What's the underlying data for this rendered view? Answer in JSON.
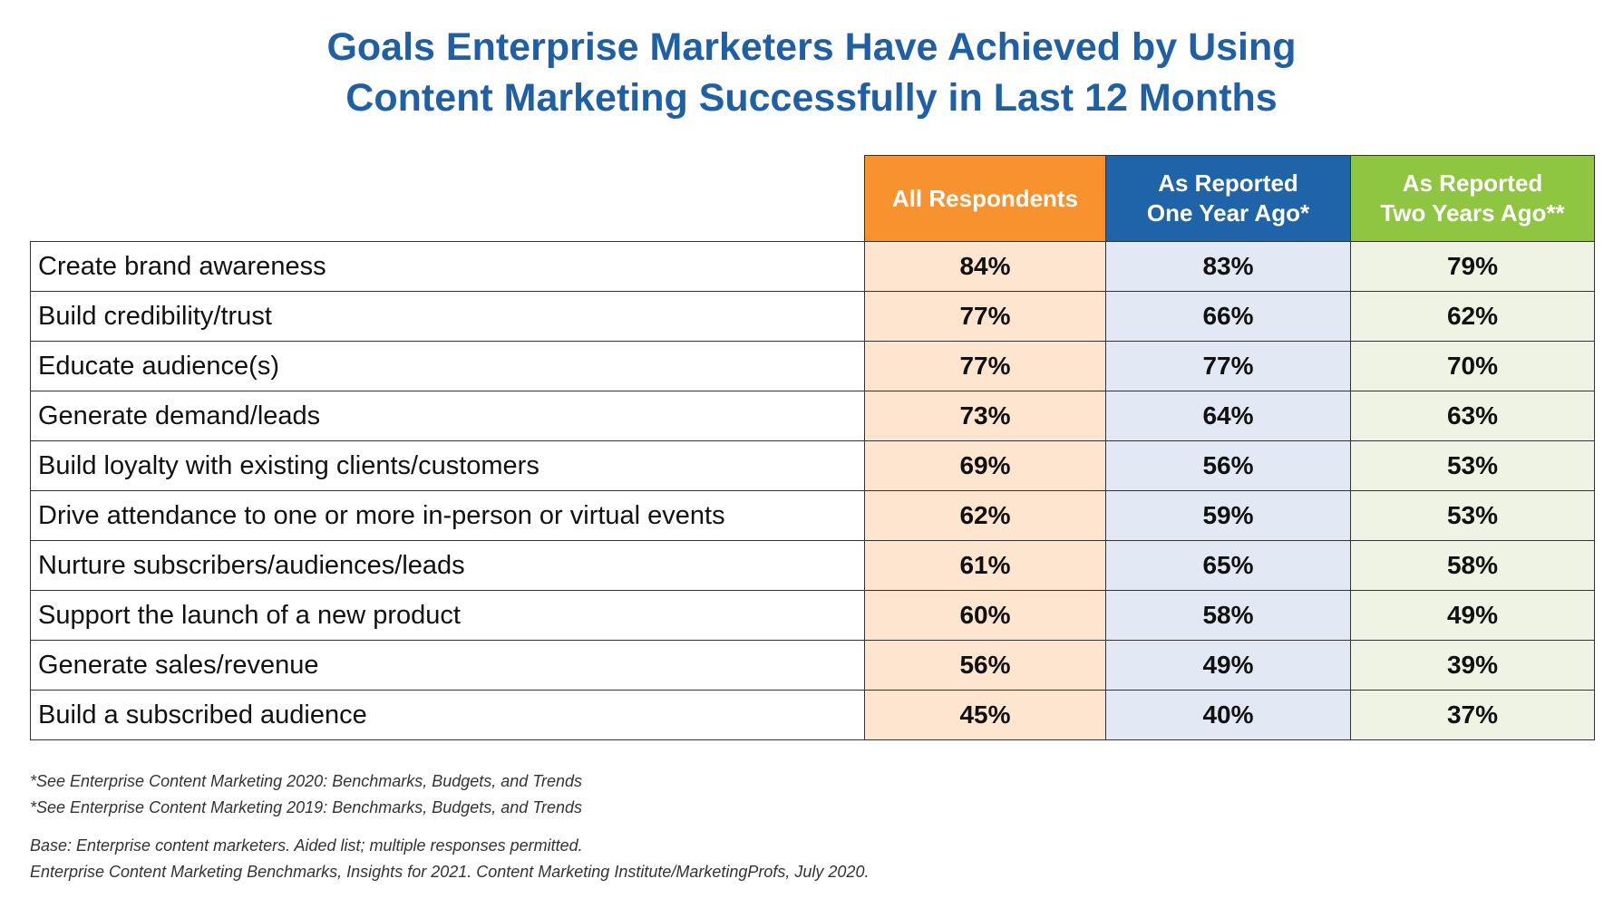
{
  "chart_data": {
    "type": "table",
    "title": [
      "Goals Enterprise Marketers Have Achieved by Using",
      "Content Marketing Successfully in Last 12 Months"
    ],
    "columns": [
      {
        "lines": [
          "All Respondents"
        ],
        "color": "#f7922e"
      },
      {
        "lines": [
          "As Reported",
          "One Year Ago*"
        ],
        "color": "#1f63a8"
      },
      {
        "lines": [
          "As Reported",
          "Two Years Ago**"
        ],
        "color": "#8ec641"
      }
    ],
    "rows": [
      {
        "label": "Create brand awareness",
        "values": [
          "84%",
          "83%",
          "79%"
        ]
      },
      {
        "label": "Build credibility/trust",
        "values": [
          "77%",
          "66%",
          "62%"
        ]
      },
      {
        "label": "Educate audience(s)",
        "values": [
          "77%",
          "77%",
          "70%"
        ]
      },
      {
        "label": "Generate demand/leads",
        "values": [
          "73%",
          "64%",
          "63%"
        ]
      },
      {
        "label": "Build loyalty with existing clients/customers",
        "values": [
          "69%",
          "56%",
          "53%"
        ]
      },
      {
        "label": "Drive attendance to one or more in-person or virtual events",
        "values": [
          "62%",
          "59%",
          "53%"
        ]
      },
      {
        "label": "Nurture subscribers/audiences/leads",
        "values": [
          "61%",
          "65%",
          "58%"
        ]
      },
      {
        "label": "Support the launch of a new product",
        "values": [
          "60%",
          "58%",
          "49%"
        ]
      },
      {
        "label": "Generate sales/revenue",
        "values": [
          "56%",
          "49%",
          "39%"
        ]
      },
      {
        "label": "Build a subscribed audience",
        "values": [
          "45%",
          "40%",
          "37%"
        ]
      }
    ]
  },
  "footnotes": [
    "*See Enterprise Content Marketing 2020: Benchmarks, Budgets, and Trends",
    "*See Enterprise Content Marketing 2019: Benchmarks, Budgets, and Trends"
  ],
  "base_note": "Base: Enterprise content marketers. Aided list; multiple responses permitted.",
  "source_note": "Enterprise Content Marketing Benchmarks, Insights for 2021. Content Marketing Institute/MarketingProfs, July 2020."
}
